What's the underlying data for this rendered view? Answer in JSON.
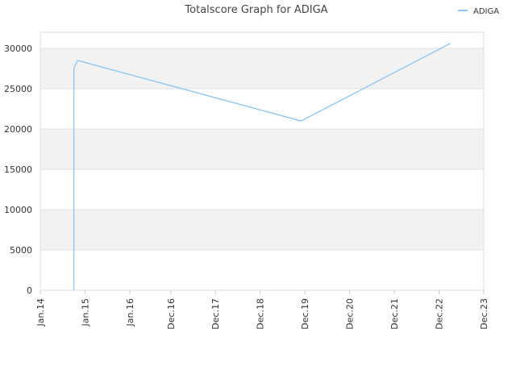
{
  "chart_data": {
    "type": "line",
    "title": "Totalscore Graph for ADIGA",
    "x": [
      "2014-10",
      "2014-10",
      "2014-11",
      "2019-11",
      "2023-03"
    ],
    "series": [
      {
        "name": "ADIGA",
        "color": "#89c4f4",
        "values": [
          0,
          27500,
          28500,
          21000,
          30600
        ]
      }
    ],
    "xlim": [
      "2014-01",
      "2023-12"
    ],
    "xticks": [
      {
        "value": "2014-01",
        "label": "Jan.14"
      },
      {
        "value": "2015-01",
        "label": "Jan.15"
      },
      {
        "value": "2016-01",
        "label": "Jan.16"
      },
      {
        "value": "2016-12",
        "label": "Dec.16"
      },
      {
        "value": "2017-12",
        "label": "Dec.17"
      },
      {
        "value": "2018-12",
        "label": "Dec.18"
      },
      {
        "value": "2019-12",
        "label": "Dec.19"
      },
      {
        "value": "2020-12",
        "label": "Dec.20"
      },
      {
        "value": "2021-12",
        "label": "Dec.21"
      },
      {
        "value": "2022-12",
        "label": "Dec.22"
      },
      {
        "value": "2023-12",
        "label": "Dec.23"
      }
    ],
    "ylim": [
      0,
      32000
    ],
    "yticks": [
      0,
      5000,
      10000,
      15000,
      20000,
      25000,
      30000
    ],
    "grid": true,
    "legend": "top-right"
  }
}
